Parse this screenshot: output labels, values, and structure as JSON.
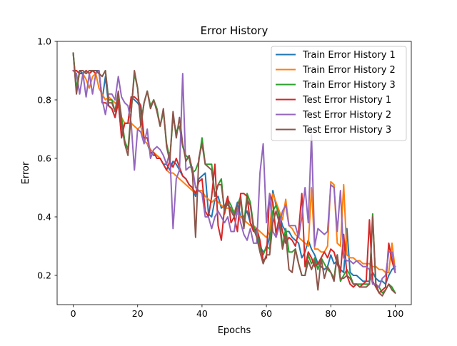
{
  "chart_data": {
    "type": "line",
    "title": "Error History",
    "xlabel": "Epochs",
    "ylabel": "Error",
    "xlim": [
      -5,
      105
    ],
    "ylim": [
      0.1,
      1.0
    ],
    "xticks": [
      0,
      20,
      40,
      60,
      80,
      100
    ],
    "yticks": [
      0.2,
      0.4,
      0.6,
      0.8,
      1.0
    ],
    "xtick_labels": [
      "0",
      "20",
      "40",
      "60",
      "80",
      "100"
    ],
    "ytick_labels": [
      "0.2",
      "0.4",
      "0.6",
      "0.8",
      "1.0"
    ],
    "grid": false,
    "legend_position": "top-right",
    "series": [
      {
        "name": "Train Error History 1",
        "color": "#1f77b4",
        "values": [
          0.96,
          0.83,
          0.9,
          0.89,
          0.9,
          0.89,
          0.9,
          0.9,
          0.9,
          0.8,
          0.88,
          0.78,
          0.77,
          0.74,
          0.79,
          0.68,
          0.72,
          0.72,
          0.81,
          0.8,
          0.79,
          0.77,
          0.66,
          0.65,
          0.62,
          0.61,
          0.61,
          0.6,
          0.58,
          0.58,
          0.56,
          0.59,
          0.58,
          0.56,
          0.54,
          0.53,
          0.51,
          0.5,
          0.47,
          0.53,
          0.54,
          0.55,
          0.41,
          0.4,
          0.46,
          0.47,
          0.43,
          0.44,
          0.44,
          0.43,
          0.41,
          0.45,
          0.4,
          0.4,
          0.42,
          0.38,
          0.36,
          0.35,
          0.3,
          0.28,
          0.29,
          0.33,
          0.49,
          0.44,
          0.41,
          0.37,
          0.35,
          0.35,
          0.33,
          0.32,
          0.31,
          0.26,
          0.28,
          0.32,
          0.29,
          0.27,
          0.24,
          0.23,
          0.22,
          0.23,
          0.27,
          0.24,
          0.25,
          0.22,
          0.21,
          0.36,
          0.21,
          0.2,
          0.2,
          0.19,
          0.18,
          0.18,
          0.18,
          0.21,
          0.19,
          0.18,
          0.18,
          0.17,
          0.2,
          0.22,
          0.23
        ]
      },
      {
        "name": "Train Error History 2",
        "color": "#ff7f0e",
        "values": [
          0.9,
          0.9,
          0.89,
          0.89,
          0.87,
          0.84,
          0.88,
          0.89,
          0.84,
          0.82,
          0.8,
          0.81,
          0.8,
          0.79,
          0.78,
          0.74,
          0.72,
          0.72,
          0.72,
          0.71,
          0.7,
          0.71,
          0.66,
          0.65,
          0.63,
          0.62,
          0.61,
          0.6,
          0.58,
          0.56,
          0.55,
          0.55,
          0.54,
          0.53,
          0.52,
          0.51,
          0.5,
          0.49,
          0.48,
          0.49,
          0.49,
          0.47,
          0.46,
          0.45,
          0.46,
          0.45,
          0.44,
          0.43,
          0.43,
          0.43,
          0.42,
          0.41,
          0.4,
          0.39,
          0.38,
          0.37,
          0.37,
          0.36,
          0.35,
          0.34,
          0.33,
          0.35,
          0.48,
          0.45,
          0.42,
          0.39,
          0.46,
          0.37,
          0.36,
          0.34,
          0.33,
          0.32,
          0.31,
          0.3,
          0.5,
          0.29,
          0.29,
          0.28,
          0.28,
          0.3,
          0.52,
          0.51,
          0.31,
          0.3,
          0.51,
          0.27,
          0.26,
          0.26,
          0.25,
          0.25,
          0.24,
          0.24,
          0.24,
          0.23,
          0.23,
          0.22,
          0.22,
          0.21,
          0.21,
          0.31,
          0.22
        ]
      },
      {
        "name": "Train Error History 3",
        "color": "#2ca02c",
        "values": [
          0.96,
          0.84,
          0.9,
          0.9,
          0.89,
          0.9,
          0.9,
          0.9,
          0.89,
          0.88,
          0.9,
          0.8,
          0.8,
          0.76,
          0.82,
          0.74,
          0.66,
          0.63,
          0.76,
          0.89,
          0.84,
          0.72,
          0.79,
          0.83,
          0.78,
          0.8,
          0.77,
          0.71,
          0.76,
          0.65,
          0.6,
          0.74,
          0.69,
          0.71,
          0.64,
          0.61,
          0.6,
          0.55,
          0.56,
          0.59,
          0.67,
          0.58,
          0.58,
          0.58,
          0.47,
          0.51,
          0.53,
          0.41,
          0.46,
          0.44,
          0.41,
          0.44,
          0.47,
          0.37,
          0.48,
          0.45,
          0.37,
          0.34,
          0.29,
          0.27,
          0.3,
          0.29,
          0.42,
          0.44,
          0.4,
          0.3,
          0.36,
          0.28,
          0.28,
          0.29,
          0.24,
          0.2,
          0.2,
          0.27,
          0.24,
          0.26,
          0.22,
          0.26,
          0.24,
          0.22,
          0.21,
          0.19,
          0.27,
          0.18,
          0.2,
          0.22,
          0.2,
          0.17,
          0.17,
          0.17,
          0.17,
          0.17,
          0.17,
          0.41,
          0.16,
          0.16,
          0.14,
          0.15,
          0.17,
          0.16,
          0.14
        ]
      },
      {
        "name": "Test Error History 1",
        "color": "#d62728",
        "values": [
          0.9,
          0.9,
          0.89,
          0.89,
          0.9,
          0.89,
          0.9,
          0.89,
          0.9,
          0.79,
          0.79,
          0.78,
          0.77,
          0.74,
          0.8,
          0.67,
          0.72,
          0.72,
          0.81,
          0.81,
          0.8,
          0.78,
          0.67,
          0.67,
          0.62,
          0.62,
          0.6,
          0.6,
          0.58,
          0.56,
          0.59,
          0.57,
          0.6,
          0.57,
          0.54,
          0.53,
          0.51,
          0.5,
          0.48,
          0.52,
          0.53,
          0.42,
          0.4,
          0.47,
          0.58,
          0.37,
          0.32,
          0.43,
          0.47,
          0.38,
          0.4,
          0.35,
          0.48,
          0.48,
          0.47,
          0.38,
          0.35,
          0.36,
          0.32,
          0.25,
          0.26,
          0.48,
          0.45,
          0.34,
          0.4,
          0.35,
          0.31,
          0.33,
          0.32,
          0.3,
          0.35,
          0.48,
          0.23,
          0.28,
          0.26,
          0.23,
          0.24,
          0.26,
          0.28,
          0.26,
          0.29,
          0.28,
          0.24,
          0.21,
          0.34,
          0.2,
          0.17,
          0.16,
          0.17,
          0.16,
          0.17,
          0.18,
          0.39,
          0.18,
          0.16,
          0.14,
          0.15,
          0.16,
          0.31,
          0.25,
          0.21
        ]
      },
      {
        "name": "Test Error History 2",
        "color": "#9467bd",
        "values": [
          0.9,
          0.89,
          0.82,
          0.89,
          0.81,
          0.89,
          0.82,
          0.89,
          0.9,
          0.8,
          0.75,
          0.82,
          0.82,
          0.8,
          0.88,
          0.81,
          0.79,
          0.78,
          0.72,
          0.56,
          0.7,
          0.69,
          0.65,
          0.7,
          0.6,
          0.63,
          0.64,
          0.63,
          0.61,
          0.58,
          0.62,
          0.36,
          0.53,
          0.56,
          0.89,
          0.56,
          0.57,
          0.57,
          0.5,
          0.49,
          0.48,
          0.4,
          0.4,
          0.36,
          0.4,
          0.42,
          0.4,
          0.38,
          0.4,
          0.35,
          0.35,
          0.43,
          0.38,
          0.34,
          0.32,
          0.36,
          0.31,
          0.31,
          0.55,
          0.65,
          0.38,
          0.48,
          0.35,
          0.33,
          0.37,
          0.42,
          0.44,
          0.37,
          0.37,
          0.37,
          0.33,
          0.4,
          0.5,
          0.38,
          0.68,
          0.3,
          0.36,
          0.35,
          0.34,
          0.35,
          0.51,
          0.5,
          0.35,
          0.49,
          0.26,
          0.25,
          0.25,
          0.24,
          0.25,
          0.24,
          0.23,
          0.23,
          0.22,
          0.17,
          0.17,
          0.16,
          0.19,
          0.2,
          0.28,
          0.28,
          0.21
        ]
      },
      {
        "name": "Test Error History 3",
        "color": "#8c564b",
        "values": [
          0.96,
          0.82,
          0.9,
          0.9,
          0.89,
          0.9,
          0.9,
          0.9,
          0.89,
          0.88,
          0.9,
          0.79,
          0.79,
          0.76,
          0.83,
          0.72,
          0.65,
          0.61,
          0.76,
          0.9,
          0.84,
          0.71,
          0.79,
          0.83,
          0.77,
          0.8,
          0.76,
          0.71,
          0.77,
          0.64,
          0.59,
          0.76,
          0.67,
          0.74,
          0.65,
          0.59,
          0.61,
          0.56,
          0.33,
          0.6,
          0.65,
          0.58,
          0.57,
          0.56,
          0.47,
          0.51,
          0.51,
          0.42,
          0.45,
          0.42,
          0.4,
          0.44,
          0.46,
          0.36,
          0.46,
          0.44,
          0.36,
          0.33,
          0.28,
          0.24,
          0.27,
          0.27,
          0.38,
          0.42,
          0.38,
          0.29,
          0.34,
          0.22,
          0.21,
          0.29,
          0.24,
          0.2,
          0.2,
          0.25,
          0.22,
          0.25,
          0.15,
          0.26,
          0.19,
          0.23,
          0.21,
          0.18,
          0.27,
          0.19,
          0.19,
          0.2,
          0.19,
          0.17,
          0.17,
          0.16,
          0.16,
          0.16,
          0.17,
          0.4,
          0.17,
          0.14,
          0.13,
          0.15,
          0.17,
          0.15,
          0.14
        ]
      }
    ]
  }
}
